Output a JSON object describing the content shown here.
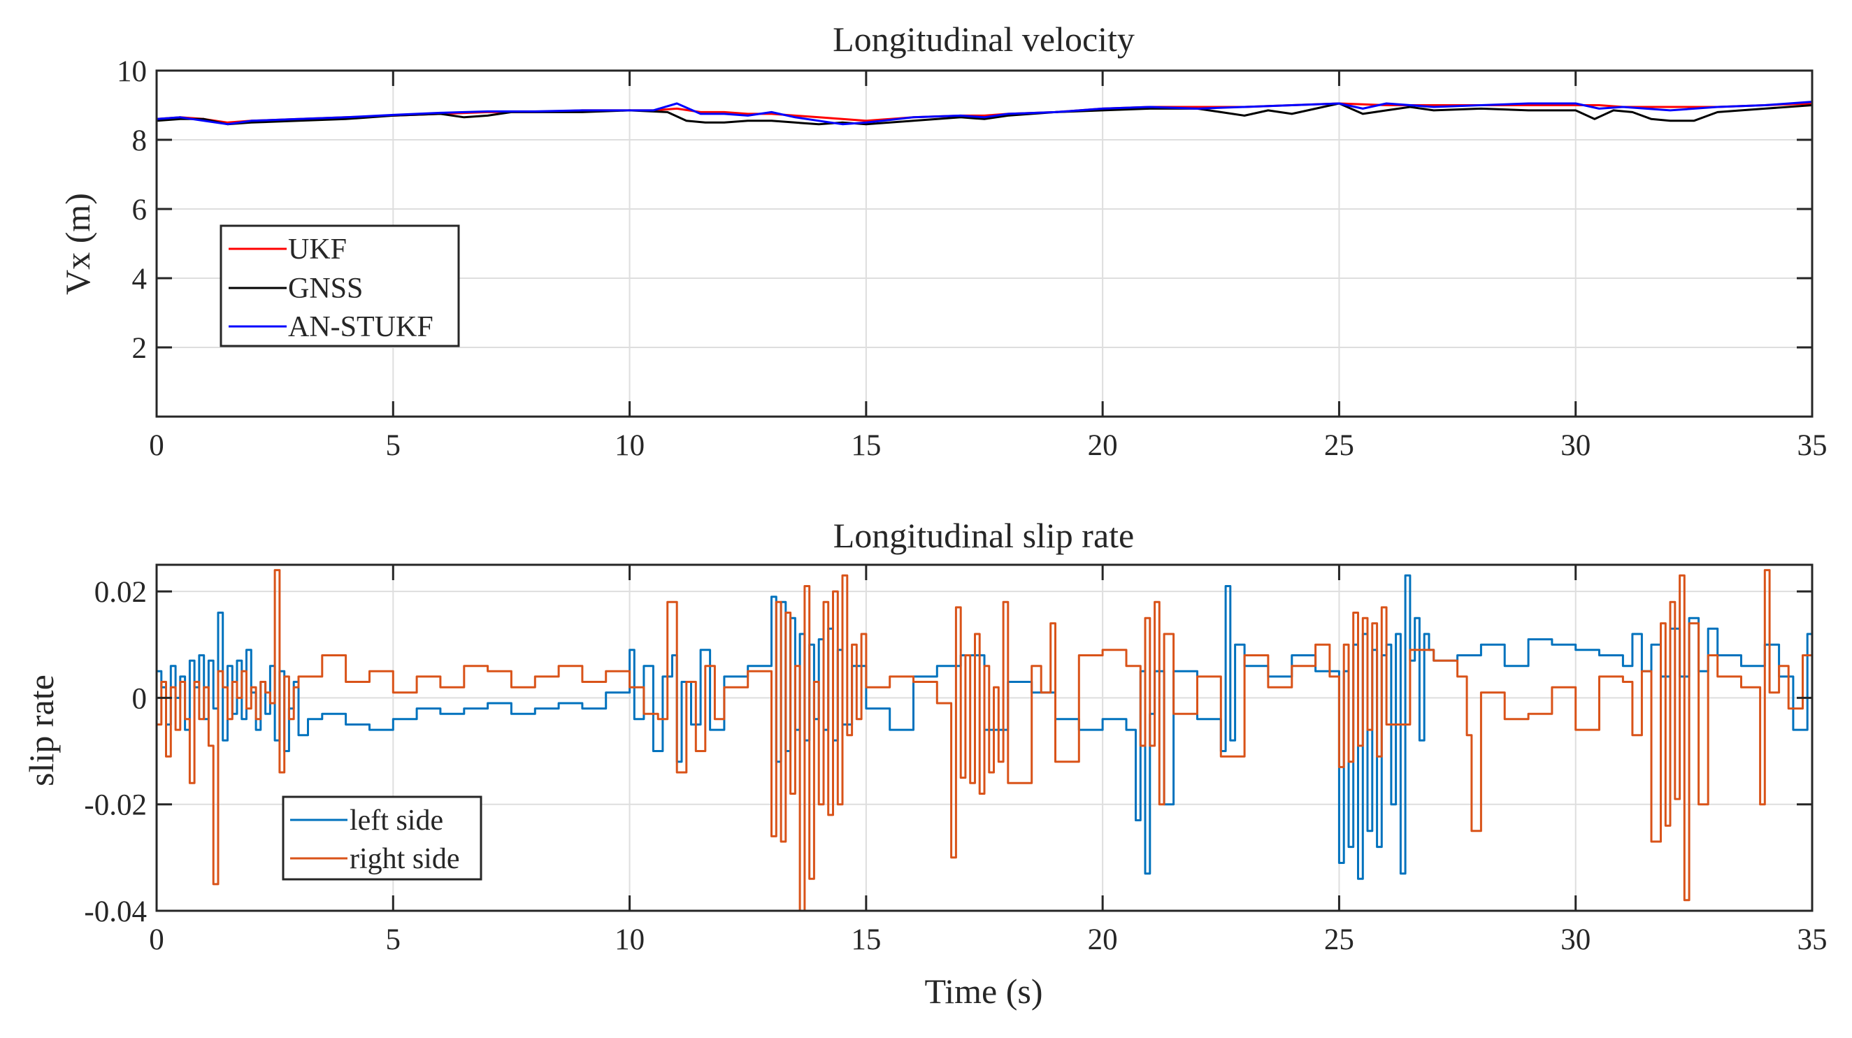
{
  "colors": {
    "ukf": "#ff0000",
    "gnss": "#000000",
    "an_stukf": "#0000ff",
    "left_side": "#0072bd",
    "right_side": "#d95319",
    "grid": "#dedede",
    "axis": "#262626"
  },
  "chart_data": [
    {
      "type": "line",
      "title": "Longitudinal velocity",
      "xlabel": "",
      "ylabel": "Vx (m)",
      "xlim": [
        0,
        35
      ],
      "ylim": [
        0,
        10
      ],
      "xticks": [
        0,
        5,
        10,
        15,
        20,
        25,
        30,
        35
      ],
      "xtick_labels": [
        "0",
        "5",
        "10",
        "15",
        "20",
        "25",
        "30",
        "35"
      ],
      "yticks": [
        2,
        4,
        6,
        8,
        10
      ],
      "ytick_labels": [
        "2",
        "4",
        "6",
        "8",
        "10"
      ],
      "grid": true,
      "legend": {
        "location": "middle-left",
        "entries": [
          "UKF",
          "GNSS",
          "AN-STUKF"
        ]
      },
      "series": [
        {
          "name": "UKF",
          "color_key": "ukf",
          "x": [
            0,
            0.5,
            1,
            1.5,
            2,
            3,
            4,
            5,
            6,
            7,
            8,
            9,
            10,
            10.5,
            11,
            11.5,
            12,
            12.5,
            13,
            13.5,
            14,
            14.5,
            15,
            16,
            17,
            17.5,
            18,
            19,
            20,
            21,
            22,
            23,
            24,
            25,
            26,
            27,
            28,
            29,
            30,
            30.5,
            31,
            32,
            33,
            34,
            35
          ],
          "values": [
            8.6,
            8.65,
            8.6,
            8.5,
            8.55,
            8.6,
            8.65,
            8.7,
            8.75,
            8.8,
            8.8,
            8.85,
            8.85,
            8.85,
            8.9,
            8.8,
            8.8,
            8.75,
            8.75,
            8.7,
            8.65,
            8.6,
            8.55,
            8.65,
            8.7,
            8.7,
            8.75,
            8.8,
            8.9,
            8.95,
            8.95,
            8.95,
            9.0,
            9.05,
            9.0,
            9.0,
            9.0,
            9.0,
            9.0,
            9.0,
            8.95,
            8.95,
            8.95,
            9.0,
            9.05
          ]
        },
        {
          "name": "GNSS",
          "color_key": "gnss",
          "x": [
            0,
            0.5,
            1,
            1.5,
            2,
            3,
            4,
            5,
            6,
            6.5,
            7,
            7.5,
            8,
            9,
            10,
            10.8,
            11.2,
            11.6,
            12,
            12.5,
            13,
            13.5,
            14,
            14.5,
            15,
            15.5,
            16,
            17,
            17.5,
            18,
            19,
            20,
            21,
            22,
            22.5,
            23,
            23.5,
            24,
            25,
            25.5,
            26,
            26.5,
            27,
            28,
            29,
            30,
            30.4,
            30.8,
            31.2,
            31.6,
            32,
            32.5,
            33,
            33.5,
            34,
            35
          ],
          "values": [
            8.55,
            8.6,
            8.6,
            8.45,
            8.5,
            8.55,
            8.6,
            8.7,
            8.75,
            8.65,
            8.7,
            8.8,
            8.8,
            8.8,
            8.85,
            8.8,
            8.55,
            8.5,
            8.5,
            8.55,
            8.55,
            8.5,
            8.45,
            8.5,
            8.45,
            8.5,
            8.55,
            8.65,
            8.6,
            8.7,
            8.8,
            8.85,
            8.9,
            8.9,
            8.8,
            8.7,
            8.85,
            8.75,
            9.05,
            8.75,
            8.85,
            8.95,
            8.85,
            8.9,
            8.85,
            8.85,
            8.6,
            8.85,
            8.8,
            8.6,
            8.55,
            8.55,
            8.8,
            8.85,
            8.9,
            9.0
          ]
        },
        {
          "name": "AN-STUKF",
          "color_key": "an_stukf",
          "x": [
            0,
            0.5,
            1,
            1.5,
            2,
            3,
            4,
            5,
            6,
            7,
            8,
            9,
            10,
            10.5,
            11,
            11.5,
            12,
            12.5,
            13,
            13.5,
            14,
            14.5,
            15,
            16,
            17,
            17.5,
            18,
            19,
            20,
            21,
            22,
            23,
            24,
            25,
            25.5,
            26,
            27,
            28,
            29,
            30,
            30.5,
            31,
            32,
            33,
            34,
            35
          ],
          "values": [
            8.6,
            8.65,
            8.55,
            8.45,
            8.55,
            8.6,
            8.65,
            8.72,
            8.78,
            8.82,
            8.82,
            8.85,
            8.85,
            8.85,
            9.05,
            8.75,
            8.75,
            8.7,
            8.8,
            8.65,
            8.55,
            8.45,
            8.5,
            8.65,
            8.7,
            8.65,
            8.75,
            8.8,
            8.9,
            8.95,
            8.9,
            8.95,
            9.0,
            9.05,
            8.9,
            9.05,
            8.95,
            9.0,
            9.05,
            9.05,
            8.9,
            8.95,
            8.85,
            8.95,
            9.0,
            9.1
          ]
        }
      ]
    },
    {
      "type": "line",
      "title": "Longitudinal slip rate",
      "xlabel": "Time (s)",
      "ylabel": "slip rate",
      "xlim": [
        0,
        35
      ],
      "ylim": [
        -0.04,
        0.025
      ],
      "xticks": [
        0,
        5,
        10,
        15,
        20,
        25,
        30,
        35
      ],
      "xtick_labels": [
        "0",
        "5",
        "10",
        "15",
        "20",
        "25",
        "30",
        "35"
      ],
      "yticks": [
        -0.04,
        -0.02,
        0,
        0.02
      ],
      "ytick_labels": [
        "-0.04",
        "-0.02",
        "0",
        "0.02"
      ],
      "grid": true,
      "step": true,
      "legend": {
        "location": "bottom-left",
        "entries": [
          "left side",
          "right side"
        ]
      },
      "series": [
        {
          "name": "left side",
          "color_key": "left_side",
          "x": [
            0,
            0.1,
            0.2,
            0.3,
            0.4,
            0.5,
            0.6,
            0.7,
            0.8,
            0.9,
            1.0,
            1.1,
            1.2,
            1.3,
            1.4,
            1.5,
            1.6,
            1.7,
            1.8,
            1.9,
            2.0,
            2.1,
            2.2,
            2.3,
            2.4,
            2.5,
            2.6,
            2.7,
            2.8,
            2.9,
            3.0,
            3.2,
            3.5,
            4.0,
            4.5,
            5.0,
            5.5,
            6.0,
            6.5,
            7.0,
            7.5,
            8.0,
            8.5,
            9.0,
            9.5,
            10.0,
            10.1,
            10.3,
            10.5,
            10.7,
            10.9,
            11.0,
            11.1,
            11.3,
            11.5,
            11.7,
            12.0,
            12.5,
            13.0,
            13.1,
            13.2,
            13.3,
            13.4,
            13.5,
            13.6,
            13.7,
            13.8,
            13.9,
            14.0,
            14.1,
            14.2,
            14.3,
            14.4,
            14.5,
            14.7,
            15.0,
            15.5,
            16.0,
            16.5,
            17.0,
            17.5,
            18.0,
            18.5,
            19.0,
            19.5,
            20.0,
            20.5,
            20.7,
            20.8,
            20.9,
            21.0,
            21.1,
            21.3,
            21.5,
            22.0,
            22.5,
            22.6,
            22.7,
            22.8,
            23.0,
            23.5,
            24.0,
            24.5,
            25.0,
            25.1,
            25.2,
            25.3,
            25.4,
            25.5,
            25.6,
            25.7,
            25.8,
            25.9,
            26.0,
            26.1,
            26.2,
            26.3,
            26.4,
            26.5,
            26.6,
            26.7,
            26.8,
            26.9,
            27.0,
            27.5,
            28.0,
            28.5,
            29.0,
            29.5,
            30.0,
            30.5,
            31.0,
            31.2,
            31.4,
            31.6,
            31.8,
            32.0,
            32.2,
            32.4,
            32.6,
            32.8,
            33.0,
            33.5,
            34.0,
            34.3,
            34.6,
            34.9,
            35.0
          ],
          "values": [
            0.005,
            0.002,
            -0.005,
            0.006,
            0.0,
            0.004,
            -0.006,
            0.007,
            0.002,
            0.008,
            -0.004,
            0.007,
            -0.002,
            0.016,
            -0.008,
            0.006,
            -0.003,
            0.007,
            -0.004,
            0.009,
            0.001,
            -0.006,
            0.003,
            -0.003,
            0.006,
            -0.008,
            0.005,
            -0.01,
            -0.002,
            0.003,
            -0.007,
            -0.004,
            -0.003,
            -0.005,
            -0.006,
            -0.004,
            -0.002,
            -0.003,
            -0.002,
            -0.001,
            -0.003,
            -0.002,
            -0.001,
            -0.002,
            0.001,
            0.009,
            -0.004,
            0.006,
            -0.01,
            0.004,
            0.008,
            -0.012,
            0.003,
            -0.005,
            0.009,
            -0.006,
            0.004,
            0.006,
            0.019,
            -0.012,
            0.018,
            -0.01,
            0.015,
            -0.006,
            0.012,
            -0.008,
            0.01,
            -0.004,
            0.011,
            -0.006,
            0.013,
            -0.008,
            0.009,
            -0.005,
            0.006,
            -0.002,
            -0.006,
            0.004,
            0.006,
            0.008,
            -0.006,
            0.003,
            0.001,
            -0.004,
            -0.006,
            -0.004,
            -0.006,
            -0.023,
            0.005,
            -0.033,
            -0.003,
            0.005,
            -0.02,
            0.005,
            -0.004,
            -0.01,
            0.021,
            -0.008,
            0.01,
            0.006,
            0.004,
            0.008,
            0.005,
            -0.031,
            0.005,
            -0.028,
            0.01,
            -0.034,
            0.012,
            -0.025,
            0.009,
            -0.028,
            0.008,
            0.01,
            -0.02,
            0.012,
            -0.033,
            0.023,
            0.007,
            0.015,
            -0.008,
            0.012,
            0.009,
            0.007,
            0.008,
            0.01,
            0.006,
            0.011,
            0.01,
            0.009,
            0.008,
            0.006,
            0.012,
            0.005,
            0.01,
            0.004,
            0.013,
            0.004,
            0.015,
            0.005,
            0.013,
            0.008,
            0.006,
            0.01,
            0.004,
            -0.006,
            0.012,
            -0.018
          ]
        },
        {
          "name": "right side",
          "color_key": "right_side",
          "x": [
            0,
            0.1,
            0.2,
            0.3,
            0.4,
            0.5,
            0.6,
            0.7,
            0.8,
            0.9,
            1.0,
            1.1,
            1.2,
            1.3,
            1.4,
            1.5,
            1.6,
            1.7,
            1.8,
            1.9,
            2.0,
            2.1,
            2.2,
            2.3,
            2.4,
            2.5,
            2.6,
            2.7,
            2.8,
            2.9,
            3.0,
            3.5,
            4.0,
            4.5,
            5.0,
            5.5,
            6.0,
            6.5,
            7.0,
            7.5,
            8.0,
            8.5,
            9.0,
            9.5,
            10.0,
            10.3,
            10.6,
            10.8,
            11.0,
            11.2,
            11.4,
            11.6,
            11.8,
            12.0,
            12.5,
            13.0,
            13.1,
            13.2,
            13.3,
            13.4,
            13.5,
            13.6,
            13.7,
            13.8,
            13.9,
            14.0,
            14.1,
            14.2,
            14.3,
            14.4,
            14.5,
            14.6,
            14.7,
            14.8,
            14.9,
            15.0,
            15.5,
            16.0,
            16.5,
            16.8,
            16.9,
            17.0,
            17.1,
            17.2,
            17.3,
            17.4,
            17.5,
            17.6,
            17.7,
            17.8,
            17.9,
            18.0,
            18.5,
            18.7,
            18.9,
            19.0,
            19.5,
            20.0,
            20.5,
            20.8,
            20.9,
            21.0,
            21.1,
            21.2,
            21.3,
            21.5,
            22.0,
            22.5,
            23.0,
            23.5,
            24.0,
            24.5,
            24.8,
            25.0,
            25.1,
            25.2,
            25.3,
            25.4,
            25.5,
            25.6,
            25.7,
            25.8,
            25.9,
            26.0,
            26.5,
            27.0,
            27.5,
            27.7,
            27.8,
            28.0,
            28.5,
            29.0,
            29.5,
            30.0,
            30.5,
            31.0,
            31.2,
            31.4,
            31.6,
            31.8,
            31.9,
            32.0,
            32.1,
            32.2,
            32.3,
            32.4,
            32.6,
            32.8,
            33.0,
            33.5,
            33.9,
            34.0,
            34.1,
            34.3,
            34.5,
            34.8,
            35.0
          ],
          "values": [
            -0.005,
            0.003,
            -0.011,
            0.002,
            -0.006,
            0.003,
            -0.004,
            -0.016,
            0.003,
            -0.004,
            0.002,
            -0.009,
            -0.035,
            0.005,
            0.002,
            -0.004,
            0.003,
            0.0,
            0.005,
            -0.002,
            0.002,
            -0.004,
            0.003,
            0.001,
            -0.001,
            0.024,
            -0.014,
            0.004,
            -0.004,
            0.002,
            0.004,
            0.008,
            0.003,
            0.005,
            0.001,
            0.004,
            0.002,
            0.006,
            0.005,
            0.002,
            0.004,
            0.006,
            0.003,
            0.005,
            0.002,
            -0.003,
            -0.004,
            0.018,
            -0.014,
            0.003,
            -0.01,
            0.006,
            -0.004,
            0.002,
            0.005,
            -0.026,
            0.018,
            -0.027,
            0.016,
            -0.018,
            0.006,
            -0.04,
            0.021,
            -0.034,
            0.003,
            -0.02,
            0.018,
            -0.022,
            0.02,
            -0.02,
            0.023,
            -0.007,
            0.01,
            -0.004,
            0.012,
            0.002,
            0.004,
            0.003,
            -0.001,
            -0.03,
            0.017,
            -0.015,
            0.008,
            -0.016,
            0.012,
            -0.018,
            0.006,
            -0.014,
            0.002,
            -0.012,
            0.018,
            -0.016,
            0.006,
            0.001,
            0.014,
            -0.012,
            0.008,
            0.009,
            0.006,
            -0.009,
            0.015,
            -0.009,
            0.018,
            -0.02,
            0.012,
            -0.003,
            0.004,
            -0.011,
            0.008,
            0.002,
            0.006,
            0.01,
            0.004,
            -0.013,
            0.01,
            -0.012,
            0.016,
            -0.009,
            0.015,
            -0.006,
            0.014,
            -0.011,
            0.017,
            -0.005,
            0.009,
            0.007,
            0.004,
            -0.007,
            -0.025,
            0.001,
            -0.004,
            -0.003,
            0.002,
            -0.006,
            0.004,
            0.003,
            -0.007,
            0.005,
            -0.027,
            0.014,
            -0.024,
            0.018,
            -0.019,
            0.023,
            -0.038,
            0.014,
            -0.02,
            0.008,
            0.004,
            0.002,
            -0.02,
            0.024,
            0.001,
            0.006,
            -0.002,
            0.008,
            0.004
          ]
        }
      ]
    }
  ]
}
